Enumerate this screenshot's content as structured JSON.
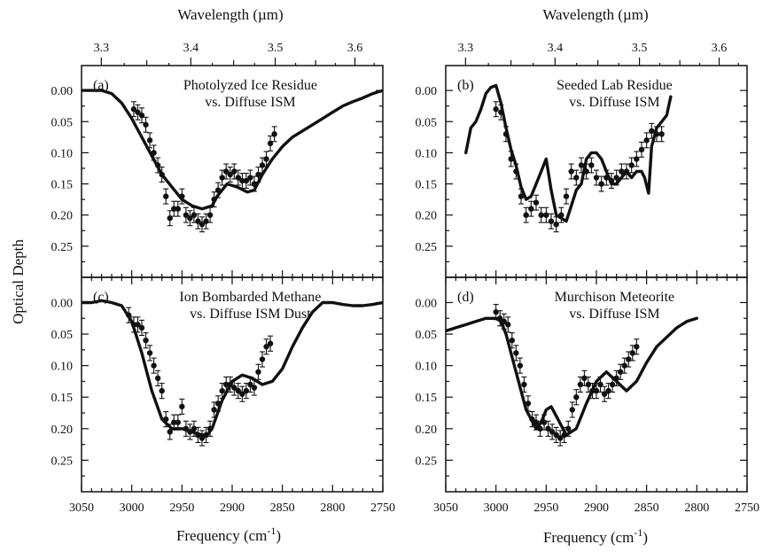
{
  "figure": {
    "ylabel": "Optical Depth",
    "xlabel_top_left": "Wavelength (µm)",
    "xlabel_top_right": "Wavelength (µm)",
    "xlabel_bottom_left": "Frequency (cm",
    "xlabel_bottom_right": "Frequency (cm",
    "xlabel_unit_exp": "-1",
    "xlabel_close": ")"
  },
  "chart_data": [
    {
      "type": "line",
      "panel": "(a)",
      "title_line1": "Photolyzed Ice Residue",
      "title_line2": "vs. Diffuse ISM",
      "xlim": [
        3050,
        2750
      ],
      "ylim": [
        0.3,
        -0.04
      ],
      "x_ticks": [
        3050,
        3000,
        2950,
        2900,
        2850,
        2800,
        2750
      ],
      "y_ticks": [
        0.0,
        0.05,
        0.1,
        0.15,
        0.2,
        0.25
      ],
      "top_ticks": [
        3.3,
        3.4,
        3.5,
        3.6
      ],
      "model": {
        "x": [
          3050,
          3040,
          3030,
          3020,
          3010,
          3000,
          2990,
          2980,
          2970,
          2960,
          2950,
          2940,
          2930,
          2920,
          2915,
          2905,
          2895,
          2885,
          2878,
          2870,
          2860,
          2850,
          2840,
          2830,
          2820,
          2810,
          2800,
          2790,
          2780,
          2770,
          2760,
          2750
        ],
        "y": [
          0.0,
          0.0,
          0.0,
          0.005,
          0.02,
          0.045,
          0.075,
          0.105,
          0.135,
          0.155,
          0.175,
          0.185,
          0.19,
          0.185,
          0.17,
          0.15,
          0.155,
          0.163,
          0.16,
          0.135,
          0.11,
          0.09,
          0.075,
          0.065,
          0.055,
          0.045,
          0.035,
          0.025,
          0.018,
          0.012,
          0.005,
          0.0
        ]
      },
      "observed": {
        "x": [
          2998,
          2994,
          2990,
          2986,
          2982,
          2978,
          2974,
          2970,
          2966,
          2962,
          2958,
          2954,
          2950,
          2946,
          2942,
          2938,
          2934,
          2930,
          2926,
          2922,
          2918,
          2914,
          2910,
          2906,
          2902,
          2898,
          2894,
          2890,
          2886,
          2882,
          2878,
          2874,
          2870,
          2866,
          2862,
          2858
        ],
        "y": [
          0.03,
          0.035,
          0.04,
          0.055,
          0.08,
          0.1,
          0.12,
          0.135,
          0.17,
          0.205,
          0.19,
          0.19,
          0.17,
          0.2,
          0.205,
          0.2,
          0.21,
          0.215,
          0.21,
          0.2,
          0.175,
          0.16,
          0.14,
          0.13,
          0.135,
          0.13,
          0.14,
          0.145,
          0.145,
          0.14,
          0.15,
          0.135,
          0.12,
          0.11,
          0.085,
          0.07
        ]
      },
      "error": 0.012
    },
    {
      "type": "line",
      "panel": "(b)",
      "title_line1": "Seeded Lab Residue",
      "title_line2": "vs. Diffuse ISM",
      "xlim": [
        3050,
        2750
      ],
      "ylim": [
        0.3,
        -0.04
      ],
      "x_ticks": [
        3050,
        3000,
        2950,
        2900,
        2850,
        2800,
        2750
      ],
      "y_ticks": [
        0.0,
        0.05,
        0.1,
        0.15,
        0.2,
        0.25
      ],
      "top_ticks": [
        3.3,
        3.4,
        3.5,
        3.6
      ],
      "model": {
        "x": [
          3030,
          3025,
          3020,
          3015,
          3010,
          3005,
          3000,
          2995,
          2990,
          2985,
          2980,
          2975,
          2970,
          2965,
          2960,
          2955,
          2950,
          2945,
          2940,
          2935,
          2930,
          2925,
          2920,
          2915,
          2910,
          2905,
          2900,
          2895,
          2890,
          2885,
          2880,
          2875,
          2870,
          2865,
          2860,
          2855,
          2852,
          2848,
          2845,
          2840,
          2835,
          2830,
          2826
        ],
        "y": [
          0.1,
          0.06,
          0.05,
          0.03,
          0.005,
          -0.005,
          -0.008,
          0.02,
          0.06,
          0.095,
          0.12,
          0.155,
          0.175,
          0.17,
          0.15,
          0.13,
          0.11,
          0.16,
          0.2,
          0.205,
          0.21,
          0.185,
          0.16,
          0.15,
          0.11,
          0.1,
          0.1,
          0.11,
          0.13,
          0.15,
          0.15,
          0.14,
          0.13,
          0.14,
          0.13,
          0.13,
          0.14,
          0.165,
          0.09,
          0.06,
          0.05,
          0.04,
          0.01
        ]
      },
      "observed": {
        "x": [
          3000,
          2995,
          2990,
          2985,
          2980,
          2975,
          2970,
          2965,
          2960,
          2955,
          2950,
          2945,
          2940,
          2935,
          2930,
          2925,
          2920,
          2915,
          2910,
          2905,
          2900,
          2895,
          2890,
          2885,
          2880,
          2875,
          2870,
          2865,
          2860,
          2855,
          2850,
          2845,
          2840,
          2835
        ],
        "y": [
          0.03,
          0.035,
          0.07,
          0.11,
          0.13,
          0.17,
          0.2,
          0.19,
          0.18,
          0.2,
          0.2,
          0.21,
          0.215,
          0.2,
          0.17,
          0.13,
          0.14,
          0.12,
          0.13,
          0.12,
          0.14,
          0.15,
          0.14,
          0.145,
          0.14,
          0.13,
          0.13,
          0.12,
          0.11,
          0.095,
          0.08,
          0.065,
          0.07,
          0.07
        ]
      },
      "error": 0.012
    },
    {
      "type": "line",
      "panel": "(c)",
      "title_line1": "Ion Bombarded Methane",
      "title_line2": "vs. Diffuse ISM Dust",
      "xlim": [
        3050,
        2750
      ],
      "ylim": [
        0.3,
        -0.04
      ],
      "x_ticks": [
        3050,
        3000,
        2950,
        2900,
        2850,
        2800,
        2750
      ],
      "y_ticks": [
        0.0,
        0.05,
        0.1,
        0.15,
        0.2,
        0.25
      ],
      "top_ticks": [],
      "model": {
        "x": [
          3050,
          3040,
          3030,
          3020,
          3010,
          3000,
          2990,
          2980,
          2970,
          2960,
          2950,
          2940,
          2930,
          2925,
          2920,
          2910,
          2900,
          2890,
          2880,
          2870,
          2860,
          2850,
          2840,
          2830,
          2820,
          2810,
          2800,
          2790,
          2780,
          2770,
          2760,
          2750
        ],
        "y": [
          0.0,
          0.0,
          -0.003,
          0.0,
          0.005,
          0.03,
          0.08,
          0.14,
          0.185,
          0.2,
          0.2,
          0.205,
          0.21,
          0.21,
          0.2,
          0.155,
          0.125,
          0.115,
          0.12,
          0.13,
          0.125,
          0.105,
          0.07,
          0.04,
          0.015,
          0.0,
          0.0,
          0.003,
          0.005,
          0.005,
          0.003,
          0.0
        ]
      },
      "observed": {
        "x": [
          3003,
          2998,
          2994,
          2990,
          2986,
          2982,
          2978,
          2974,
          2970,
          2966,
          2962,
          2958,
          2954,
          2950,
          2946,
          2942,
          2938,
          2934,
          2930,
          2926,
          2922,
          2918,
          2914,
          2910,
          2906,
          2902,
          2898,
          2894,
          2890,
          2886,
          2882,
          2878,
          2874,
          2870,
          2866,
          2862
        ],
        "y": [
          0.02,
          0.035,
          0.035,
          0.04,
          0.06,
          0.08,
          0.1,
          0.12,
          0.14,
          0.185,
          0.205,
          0.19,
          0.19,
          0.165,
          0.2,
          0.205,
          0.2,
          0.21,
          0.215,
          0.21,
          0.2,
          0.17,
          0.16,
          0.14,
          0.13,
          0.13,
          0.135,
          0.14,
          0.145,
          0.14,
          0.13,
          0.135,
          0.11,
          0.09,
          0.07,
          0.065
        ]
      },
      "error": 0.012
    },
    {
      "type": "line",
      "panel": "(d)",
      "title_line1": "Murchison Meteorite",
      "title_line2": "vs. Diffuse ISM",
      "xlim": [
        3050,
        2750
      ],
      "ylim": [
        0.3,
        -0.04
      ],
      "x_ticks": [
        3050,
        3000,
        2950,
        2900,
        2850,
        2800,
        2750
      ],
      "y_ticks": [
        0.0,
        0.05,
        0.1,
        0.15,
        0.2,
        0.25
      ],
      "top_ticks": [],
      "model": {
        "x": [
          3050,
          3040,
          3030,
          3020,
          3010,
          3000,
          2995,
          2990,
          2980,
          2970,
          2960,
          2955,
          2950,
          2945,
          2940,
          2930,
          2920,
          2910,
          2900,
          2890,
          2880,
          2870,
          2860,
          2850,
          2840,
          2830,
          2820,
          2810,
          2800
        ],
        "y": [
          0.045,
          0.04,
          0.035,
          0.03,
          0.025,
          0.025,
          0.03,
          0.05,
          0.11,
          0.17,
          0.2,
          0.19,
          0.17,
          0.165,
          0.18,
          0.21,
          0.2,
          0.16,
          0.125,
          0.11,
          0.125,
          0.14,
          0.125,
          0.095,
          0.07,
          0.055,
          0.04,
          0.03,
          0.025
        ]
      },
      "observed": {
        "x": [
          3000,
          2996,
          2992,
          2988,
          2984,
          2980,
          2976,
          2972,
          2968,
          2964,
          2960,
          2956,
          2952,
          2948,
          2944,
          2940,
          2936,
          2932,
          2928,
          2924,
          2920,
          2916,
          2912,
          2908,
          2904,
          2900,
          2896,
          2892,
          2888,
          2884,
          2880,
          2876,
          2872,
          2868,
          2864,
          2860
        ],
        "y": [
          0.015,
          0.025,
          0.03,
          0.035,
          0.06,
          0.08,
          0.1,
          0.13,
          0.16,
          0.185,
          0.19,
          0.2,
          0.19,
          0.2,
          0.205,
          0.21,
          0.215,
          0.21,
          0.2,
          0.17,
          0.15,
          0.13,
          0.12,
          0.13,
          0.14,
          0.14,
          0.13,
          0.145,
          0.14,
          0.13,
          0.12,
          0.11,
          0.1,
          0.09,
          0.08,
          0.07
        ]
      },
      "error": 0.012
    }
  ]
}
